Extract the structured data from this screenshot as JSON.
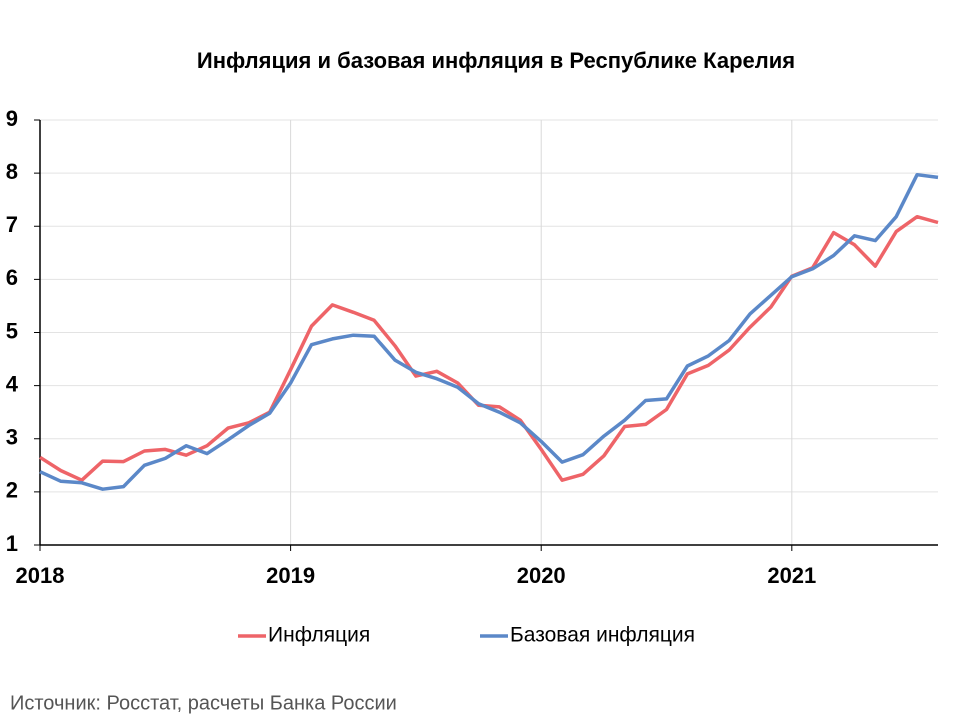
{
  "chart_data": {
    "type": "line",
    "title": "Инфляция и базовая инфляция в Республике Карелия",
    "source": "Источник: Росстат, расчеты Банка России",
    "categories": [
      "2018",
      null,
      null,
      null,
      null,
      null,
      null,
      null,
      null,
      null,
      null,
      null,
      "2019",
      null,
      null,
      null,
      null,
      null,
      null,
      null,
      null,
      null,
      null,
      null,
      "2020",
      null,
      null,
      null,
      null,
      null,
      null,
      null,
      null,
      null,
      null,
      null,
      "2021",
      null,
      null,
      null,
      null,
      null,
      null,
      null
    ],
    "series": [
      {
        "name": "Инфляция",
        "color": "#ee6468",
        "values": [
          2.65,
          2.4,
          2.22,
          2.58,
          2.57,
          2.77,
          2.8,
          2.69,
          2.87,
          3.2,
          3.3,
          3.5,
          4.3,
          5.12,
          5.52,
          5.38,
          5.23,
          4.75,
          4.18,
          4.27,
          4.05,
          3.63,
          3.6,
          3.35,
          2.8,
          2.22,
          2.33,
          2.68,
          3.23,
          3.27,
          3.55,
          4.22,
          4.38,
          4.67,
          5.1,
          5.48,
          6.06,
          6.22,
          6.88,
          6.65,
          6.25,
          6.9,
          7.18,
          7.07
        ]
      },
      {
        "name": "Базовая инфляция",
        "color": "#5b88c8",
        "values": [
          2.38,
          2.2,
          2.17,
          2.05,
          2.1,
          2.5,
          2.63,
          2.87,
          2.72,
          2.98,
          3.25,
          3.48,
          4.05,
          4.77,
          4.88,
          4.95,
          4.93,
          4.48,
          4.25,
          4.13,
          3.97,
          3.66,
          3.5,
          3.3,
          2.95,
          2.56,
          2.7,
          3.05,
          3.35,
          3.72,
          3.75,
          4.37,
          4.56,
          4.85,
          5.35,
          5.7,
          6.05,
          6.2,
          6.45,
          6.82,
          6.73,
          7.18,
          7.97,
          7.92
        ]
      }
    ],
    "ylim": [
      1,
      9
    ],
    "yticks": [
      1,
      2,
      3,
      4,
      5,
      6,
      7,
      8,
      9
    ],
    "grid": true,
    "legend": "bottom"
  }
}
